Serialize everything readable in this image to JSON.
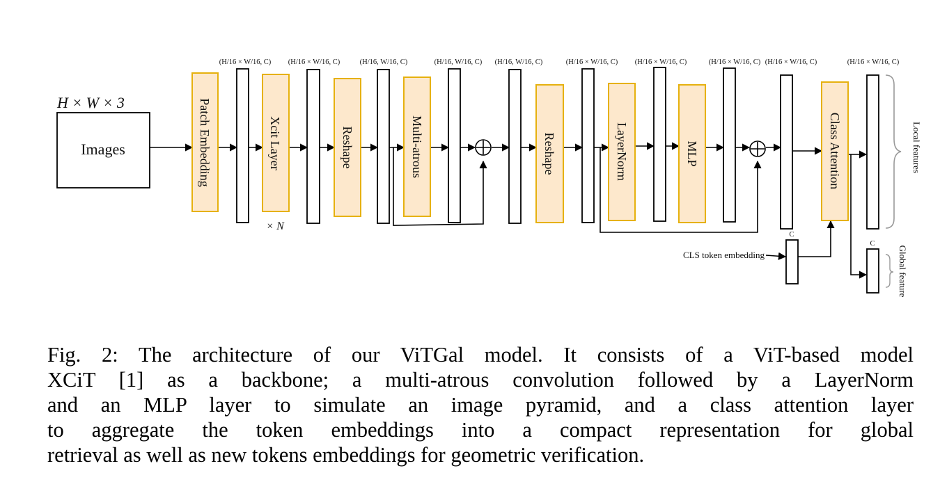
{
  "figure": {
    "input_dims": "H × W × 3",
    "input_label": "Images",
    "repeat_label": "× N",
    "blocks": {
      "patch_embedding": "Patch Embedding",
      "xcit_layer": "Xcit Layer",
      "reshape_1": "Reshape",
      "multi_atrous": "Multi-atrous",
      "reshape_2": "Reshape",
      "layernorm": "LayerNorm",
      "mlp": "MLP",
      "class_attention": "Class Attention"
    },
    "dims": {
      "d1": "(H/16 × W/16, C)",
      "d2": "(H/16 × W/16, C)",
      "d3": "(H/16, W/16, C)",
      "d4": "(H/16, W/16, C)",
      "d5": "(H/16, W/16, C)",
      "d6": "(H/16 × W/16, C)",
      "d7": "(H/16 × W/16, C)",
      "d8": "(H/16 × W/16, C)",
      "d9": "(H/16 × W/16, C)",
      "d10": "(H/16 × W/16, C)"
    },
    "cls_label": "CLS token embedding",
    "cls_dim": "C",
    "global_dim": "C",
    "local_features_label": "Local features",
    "global_feature_label": "Global feature"
  },
  "caption": {
    "lines": [
      "Fig. 2: The architecture of our ViTGal model. It consists of a ViT-based model",
      "XCiT [1] as a backbone; a multi-atrous convolution followed by a LayerNorm",
      "and an MLP layer to simulate an image pyramid, and a class attention layer",
      "to aggregate the token embeddings into a compact representation for global",
      "retrieval as well as new tokens embeddings for geometric verification."
    ]
  }
}
